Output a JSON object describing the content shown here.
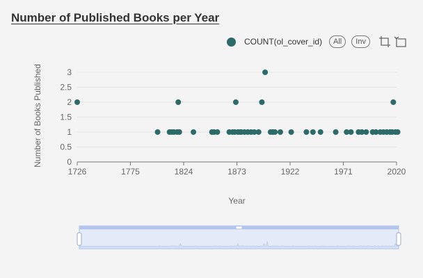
{
  "chart_data": {
    "type": "scatter",
    "title": "Number of Published Books per Year",
    "xlabel": "Year",
    "ylabel": "Number of Books Published",
    "xlim": [
      1726,
      2020
    ],
    "ylim": [
      0,
      3
    ],
    "x_ticks": [
      "1726",
      "1775",
      "1824",
      "1873",
      "1922",
      "1971",
      "2020"
    ],
    "y_ticks": [
      "0",
      "0.5",
      "1",
      "1.5",
      "2",
      "2.5",
      "3"
    ],
    "grid": true,
    "legend_position": "top-right",
    "series": [
      {
        "name": "COUNT(ol_cover_id)",
        "color": "#2d6a6a",
        "points": [
          [
            1726,
            2
          ],
          [
            1800,
            1
          ],
          [
            1811,
            1
          ],
          [
            1813,
            1
          ],
          [
            1815,
            1
          ],
          [
            1818,
            1
          ],
          [
            1820,
            1
          ],
          [
            1819,
            2
          ],
          [
            1833,
            1
          ],
          [
            1850,
            1
          ],
          [
            1852,
            1
          ],
          [
            1855,
            1
          ],
          [
            1866,
            1
          ],
          [
            1869,
            1
          ],
          [
            1871,
            1
          ],
          [
            1872,
            2
          ],
          [
            1874,
            1
          ],
          [
            1876,
            1
          ],
          [
            1877,
            1
          ],
          [
            1880,
            1
          ],
          [
            1883,
            1
          ],
          [
            1886,
            1
          ],
          [
            1889,
            1
          ],
          [
            1893,
            1
          ],
          [
            1896,
            2
          ],
          [
            1899,
            3
          ],
          [
            1904,
            1
          ],
          [
            1906,
            1
          ],
          [
            1908,
            1
          ],
          [
            1913,
            1
          ],
          [
            1923,
            1
          ],
          [
            1937,
            1
          ],
          [
            1943,
            1
          ],
          [
            1950,
            1
          ],
          [
            1964,
            1
          ],
          [
            1974,
            1
          ],
          [
            1978,
            1
          ],
          [
            1985,
            1
          ],
          [
            1988,
            1
          ],
          [
            1992,
            1
          ],
          [
            1998,
            1
          ],
          [
            2001,
            1
          ],
          [
            2005,
            1
          ],
          [
            2008,
            1
          ],
          [
            2011,
            1
          ],
          [
            2014,
            1
          ],
          [
            2016,
            1
          ],
          [
            2017,
            2
          ],
          [
            2019,
            1
          ],
          [
            2021,
            1
          ]
        ]
      }
    ]
  },
  "legend": {
    "all_label": "All",
    "inv_label": "Inv",
    "rect_select_icon": "rect-select-icon",
    "clear_select_icon": "clear-select-icon"
  },
  "datazoom": {
    "range_start": 0,
    "range_end": 100,
    "fill_color": "#dde6f7",
    "border_color": "#b3c5ed",
    "handle_color": "#ffffff"
  }
}
